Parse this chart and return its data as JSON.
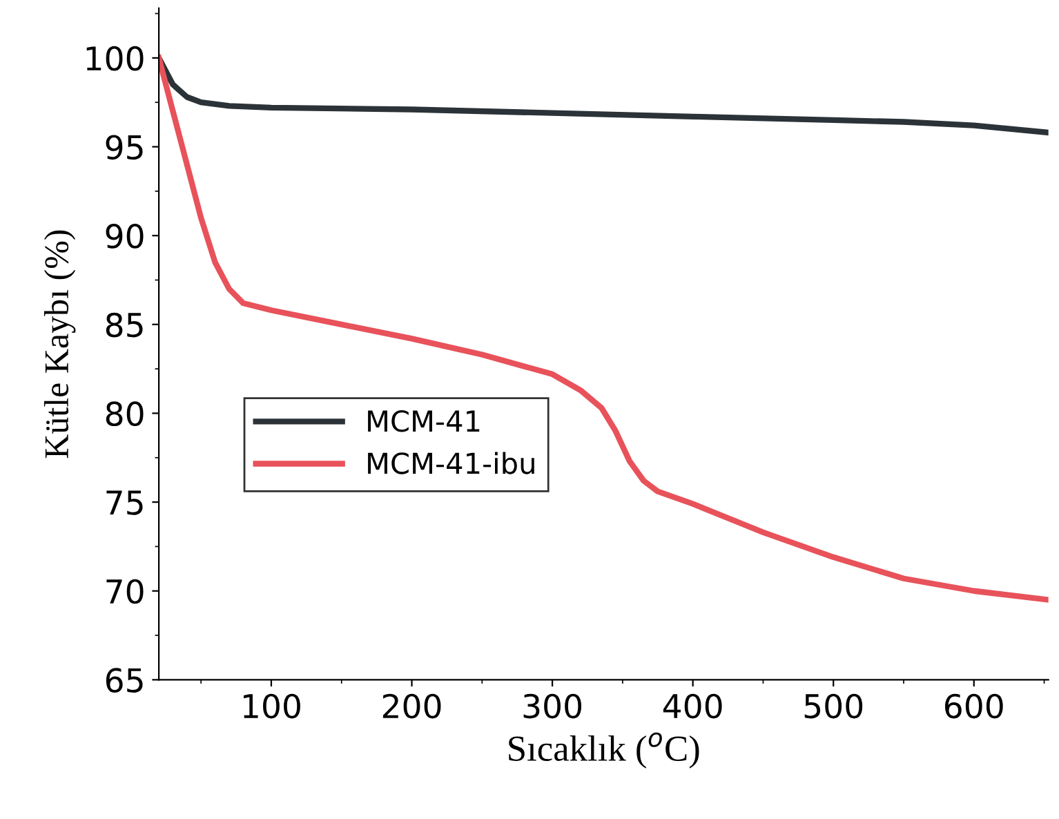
{
  "chart_data": {
    "type": "line",
    "xlabel": "Sıcaklık ($^{o}$C)",
    "ylabel": "Kütle Kaybı (%)",
    "xlim": [
      20,
      653
    ],
    "ylim": [
      65,
      102.8
    ],
    "xticks": [
      100,
      200,
      300,
      400,
      500,
      600
    ],
    "yticks": [
      65,
      70,
      75,
      80,
      85,
      90,
      95,
      100
    ],
    "grid": false,
    "legend": "center left",
    "marker": "none",
    "line_style": "solid",
    "series": [
      {
        "name": "MCM-41",
        "color": "#2b3338",
        "x": [
          20,
          30,
          40,
          50,
          70,
          100,
          200,
          300,
          400,
          500,
          550,
          600,
          653
        ],
        "values": [
          100,
          98.5,
          97.8,
          97.5,
          97.3,
          97.2,
          97.1,
          96.9,
          96.7,
          96.5,
          96.4,
          96.2,
          95.8
        ]
      },
      {
        "name": "MCM-41-ibu",
        "color": "#e8525a",
        "x": [
          20,
          30,
          40,
          50,
          60,
          70,
          80,
          100,
          150,
          200,
          250,
          300,
          320,
          335,
          345,
          355,
          365,
          375,
          400,
          450,
          500,
          550,
          600,
          653
        ],
        "values": [
          100,
          97,
          94,
          91,
          88.5,
          87,
          86.2,
          85.8,
          85,
          84.2,
          83.3,
          82.2,
          81.3,
          80.3,
          79,
          77.3,
          76.2,
          75.6,
          74.9,
          73.3,
          71.9,
          70.7,
          70.0,
          69.5
        ]
      }
    ]
  }
}
